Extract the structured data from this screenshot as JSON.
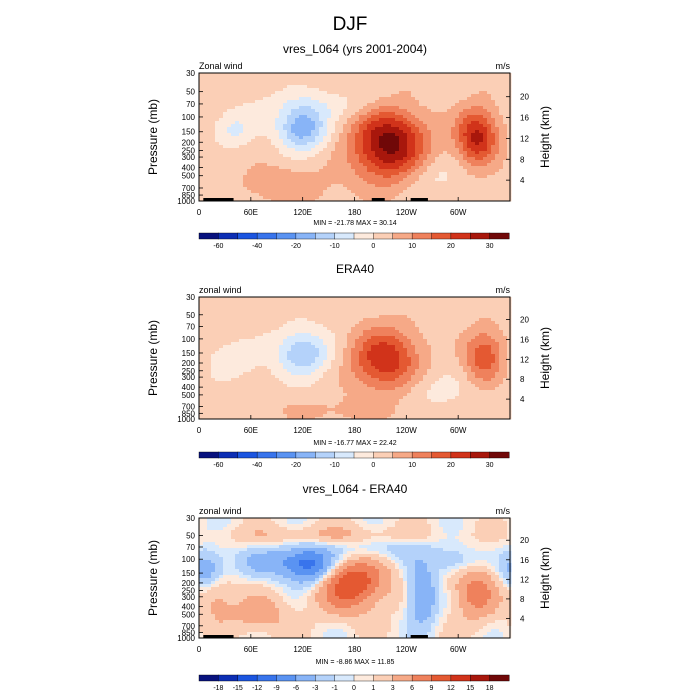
{
  "figure_title": "DJF",
  "colors": {
    "palette": [
      "#08127e",
      "#0c2eb4",
      "#1b55e0",
      "#3874ec",
      "#5a93f2",
      "#88b4f7",
      "#b4d2fa",
      "#d8e9fc",
      "#fdeadd",
      "#fbcfb6",
      "#f6a987",
      "#ef815c",
      "#e45932",
      "#d1331a",
      "#a8170c",
      "#700808"
    ],
    "diff_palette": [
      "#08127e",
      "#0c2eb4",
      "#1b55e0",
      "#3874ec",
      "#5a93f2",
      "#88b4f7",
      "#b4d2fa",
      "#d8e9fc",
      "#fdeadd",
      "#fbcfb6",
      "#f6a987",
      "#ef815c",
      "#e45932",
      "#d1331a",
      "#a8170c",
      "#700808"
    ],
    "topography": "#000000"
  },
  "chart_data": [
    {
      "id": "model",
      "type": "heatmap",
      "title": "vres_L064 (yrs 2001-2004)",
      "left_label": "Zonal wind",
      "right_label": "m/s",
      "xlabel": "",
      "ylabel": "Pressure (mb)",
      "ylabel_right": "Height (km)",
      "stats": "MIN = -21.78  MAX = 30.14",
      "x_ticks": [
        "0",
        "60E",
        "120E",
        "180",
        "120W",
        "60W"
      ],
      "x_tick_lon": [
        0,
        60,
        120,
        180,
        240,
        300
      ],
      "xlim": [
        0,
        360
      ],
      "p_ticks": [
        30,
        50,
        70,
        100,
        150,
        200,
        250,
        300,
        400,
        500,
        700,
        850,
        1000
      ],
      "p_tick_labels": [
        "30",
        "50",
        "70",
        "100",
        "150",
        "200",
        "250",
        "300",
        "400",
        "500",
        "700",
        "850",
        "1000"
      ],
      "ylim": [
        1000,
        30
      ],
      "height_ticks": [
        "20",
        "16",
        "12",
        "8",
        "4"
      ],
      "height_km": [
        20,
        16,
        12,
        8,
        4
      ],
      "colorbar_levels": [
        -70,
        -60,
        -50,
        -40,
        -30,
        -20,
        -15,
        -10,
        -5,
        0,
        5,
        10,
        15,
        20,
        25,
        30
      ],
      "colorbar_labels": [
        "-60",
        "-40",
        "-20",
        "-10",
        "0",
        "10",
        "20",
        "30"
      ],
      "colorbar_label_index": [
        1,
        3,
        5,
        7,
        9,
        11,
        13,
        15
      ],
      "features": [
        {
          "lon": 120,
          "p": 135,
          "amp": -21.8,
          "slon": 20,
          "sp": 0.42
        },
        {
          "lon": 40,
          "p": 140,
          "amp": -9,
          "slon": 16,
          "sp": 0.3
        },
        {
          "lon": 220,
          "p": 210,
          "amp": 30.1,
          "slon": 30,
          "sp": 0.7
        },
        {
          "lon": 322,
          "p": 170,
          "amp": 24,
          "slon": 17,
          "sp": 0.55
        },
        {
          "lon": 100,
          "p": 650,
          "amp": 6,
          "slon": 40,
          "sp": 0.4
        },
        {
          "lon": 150,
          "p": 70,
          "amp": -5,
          "slon": 70,
          "sp": 0.3
        },
        {
          "lon": 270,
          "p": 500,
          "amp": -5,
          "slon": 25,
          "sp": 0.4
        }
      ],
      "base_wind": 2.5,
      "topography_lon": [
        [
          5,
          40
        ],
        [
          200,
          215
        ],
        [
          245,
          265
        ]
      ]
    },
    {
      "id": "era40",
      "type": "heatmap",
      "title": "ERA40",
      "left_label": "zonal wind",
      "right_label": "m/s",
      "xlabel": "",
      "ylabel": "Pressure (mb)",
      "ylabel_right": "Height (km)",
      "stats": "MIN = -16.77  MAX = 22.42",
      "x_ticks": [
        "0",
        "60E",
        "120E",
        "180",
        "120W",
        "60W"
      ],
      "x_tick_lon": [
        0,
        60,
        120,
        180,
        240,
        300
      ],
      "xlim": [
        0,
        360
      ],
      "p_ticks": [
        30,
        50,
        70,
        100,
        150,
        200,
        250,
        300,
        400,
        500,
        700,
        850,
        1000
      ],
      "p_tick_labels": [
        "30",
        "50",
        "70",
        "100",
        "150",
        "200",
        "250",
        "300",
        "400",
        "500",
        "700",
        "850",
        "1000"
      ],
      "ylim": [
        1000,
        30
      ],
      "height_ticks": [
        "20",
        "16",
        "12",
        "8",
        "4"
      ],
      "height_km": [
        20,
        16,
        12,
        8,
        4
      ],
      "colorbar_levels": [
        -70,
        -60,
        -50,
        -40,
        -30,
        -20,
        -15,
        -10,
        -5,
        0,
        5,
        10,
        15,
        20,
        25,
        30
      ],
      "colorbar_labels": [
        "-60",
        "-40",
        "-20",
        "-10",
        "0",
        "10",
        "20",
        "30"
      ],
      "colorbar_label_index": [
        1,
        3,
        5,
        7,
        9,
        11,
        13,
        15
      ],
      "features": [
        {
          "lon": 120,
          "p": 150,
          "amp": -16.8,
          "slon": 22,
          "sp": 0.45
        },
        {
          "lon": 40,
          "p": 180,
          "amp": -6,
          "slon": 20,
          "sp": 0.35
        },
        {
          "lon": 215,
          "p": 180,
          "amp": 22.4,
          "slon": 28,
          "sp": 0.65
        },
        {
          "lon": 330,
          "p": 160,
          "amp": 17,
          "slon": 16,
          "sp": 0.55
        },
        {
          "lon": 160,
          "p": 800,
          "amp": 4,
          "slon": 60,
          "sp": 0.3
        },
        {
          "lon": 270,
          "p": 450,
          "amp": -4,
          "slon": 30,
          "sp": 0.4
        }
      ],
      "base_wind": 2,
      "topography_lon": []
    },
    {
      "id": "diff",
      "type": "heatmap",
      "title": "vres_L064 - ERA40",
      "left_label": "zonal wind",
      "right_label": "m/s",
      "xlabel": "",
      "ylabel": "Pressure (mb)",
      "ylabel_right": "Height (km)",
      "stats": "MIN = -8.86  MAX = 11.85",
      "x_ticks": [
        "0",
        "60E",
        "120E",
        "180",
        "120W",
        "60W"
      ],
      "x_tick_lon": [
        0,
        60,
        120,
        180,
        240,
        300
      ],
      "xlim": [
        0,
        360
      ],
      "p_ticks": [
        30,
        50,
        70,
        100,
        150,
        200,
        250,
        300,
        400,
        500,
        700,
        850,
        1000
      ],
      "p_tick_labels": [
        "30",
        "50",
        "70",
        "100",
        "150",
        "200",
        "250",
        "300",
        "400",
        "500",
        "700",
        "850",
        "1000"
      ],
      "ylim": [
        1000,
        30
      ],
      "height_ticks": [
        "20",
        "16",
        "12",
        "8",
        "4"
      ],
      "height_km": [
        20,
        16,
        12,
        8,
        4
      ],
      "colorbar_levels": [
        -21,
        -18,
        -15,
        -12,
        -9,
        -6,
        -3,
        -1,
        0,
        1,
        3,
        6,
        9,
        12,
        15,
        18
      ],
      "colorbar_labels": [
        "-18",
        "-15",
        "-12",
        "-9",
        "-6",
        "-3",
        "-1",
        "0",
        "1",
        "3",
        "6",
        "9",
        "12",
        "15",
        "18"
      ],
      "colorbar_label_index": [
        1,
        2,
        3,
        4,
        5,
        6,
        7,
        8,
        9,
        10,
        11,
        12,
        13,
        14,
        15
      ],
      "features": [
        {
          "lon": 175,
          "p": 200,
          "amp": 11.85,
          "slon": 28,
          "sp": 0.55
        },
        {
          "lon": 320,
          "p": 250,
          "amp": 7,
          "slon": 18,
          "sp": 0.6
        },
        {
          "lon": 20,
          "p": 300,
          "amp": 4,
          "slon": 14,
          "sp": 0.5
        },
        {
          "lon": 70,
          "p": 500,
          "amp": 4,
          "slon": 25,
          "sp": 0.4
        },
        {
          "lon": 130,
          "p": 130,
          "amp": -8.86,
          "slon": 20,
          "sp": 0.4
        },
        {
          "lon": 258,
          "p": 300,
          "amp": -7,
          "slon": 12,
          "sp": 0.6
        },
        {
          "lon": 10,
          "p": 140,
          "amp": -6,
          "slon": 14,
          "sp": 0.4
        },
        {
          "lon": 300,
          "p": 110,
          "amp": -4,
          "slon": 20,
          "sp": 0.3
        },
        {
          "lon": 100,
          "p": 110,
          "amp": -5,
          "slon": 40,
          "sp": 0.3
        },
        {
          "lon": 200,
          "p": 75,
          "amp": -3,
          "slon": 50,
          "sp": 0.3
        },
        {
          "lon": 150,
          "p": 50,
          "amp": 3,
          "slon": 80,
          "sp": 0.2
        }
      ],
      "base_wind": 0.5,
      "topography_lon": [
        [
          5,
          40
        ],
        [
          245,
          265
        ]
      ]
    }
  ]
}
